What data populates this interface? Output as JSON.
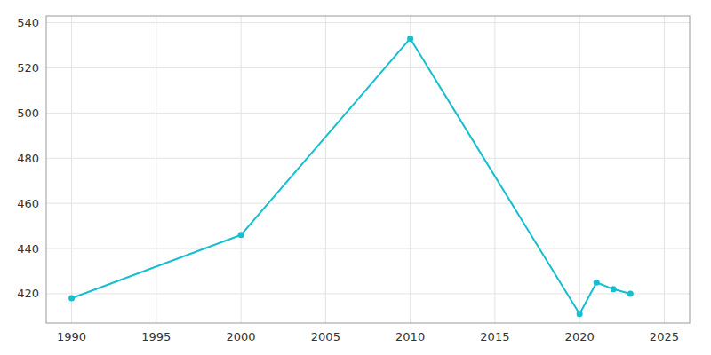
{
  "chart_data": {
    "type": "line",
    "x": [
      1990,
      2000,
      2010,
      2020,
      2021,
      2022,
      2023
    ],
    "values": [
      418,
      446,
      533,
      411,
      425,
      422,
      420
    ],
    "color": "#17BECF",
    "marker": "circle",
    "xlim": [
      1988.5,
      2026.5
    ],
    "ylim": [
      407,
      543
    ],
    "xticks": [
      1990,
      1995,
      2000,
      2005,
      2010,
      2015,
      2020,
      2025
    ],
    "yticks": [
      420,
      440,
      460,
      480,
      500,
      520,
      540
    ],
    "grid": true
  }
}
